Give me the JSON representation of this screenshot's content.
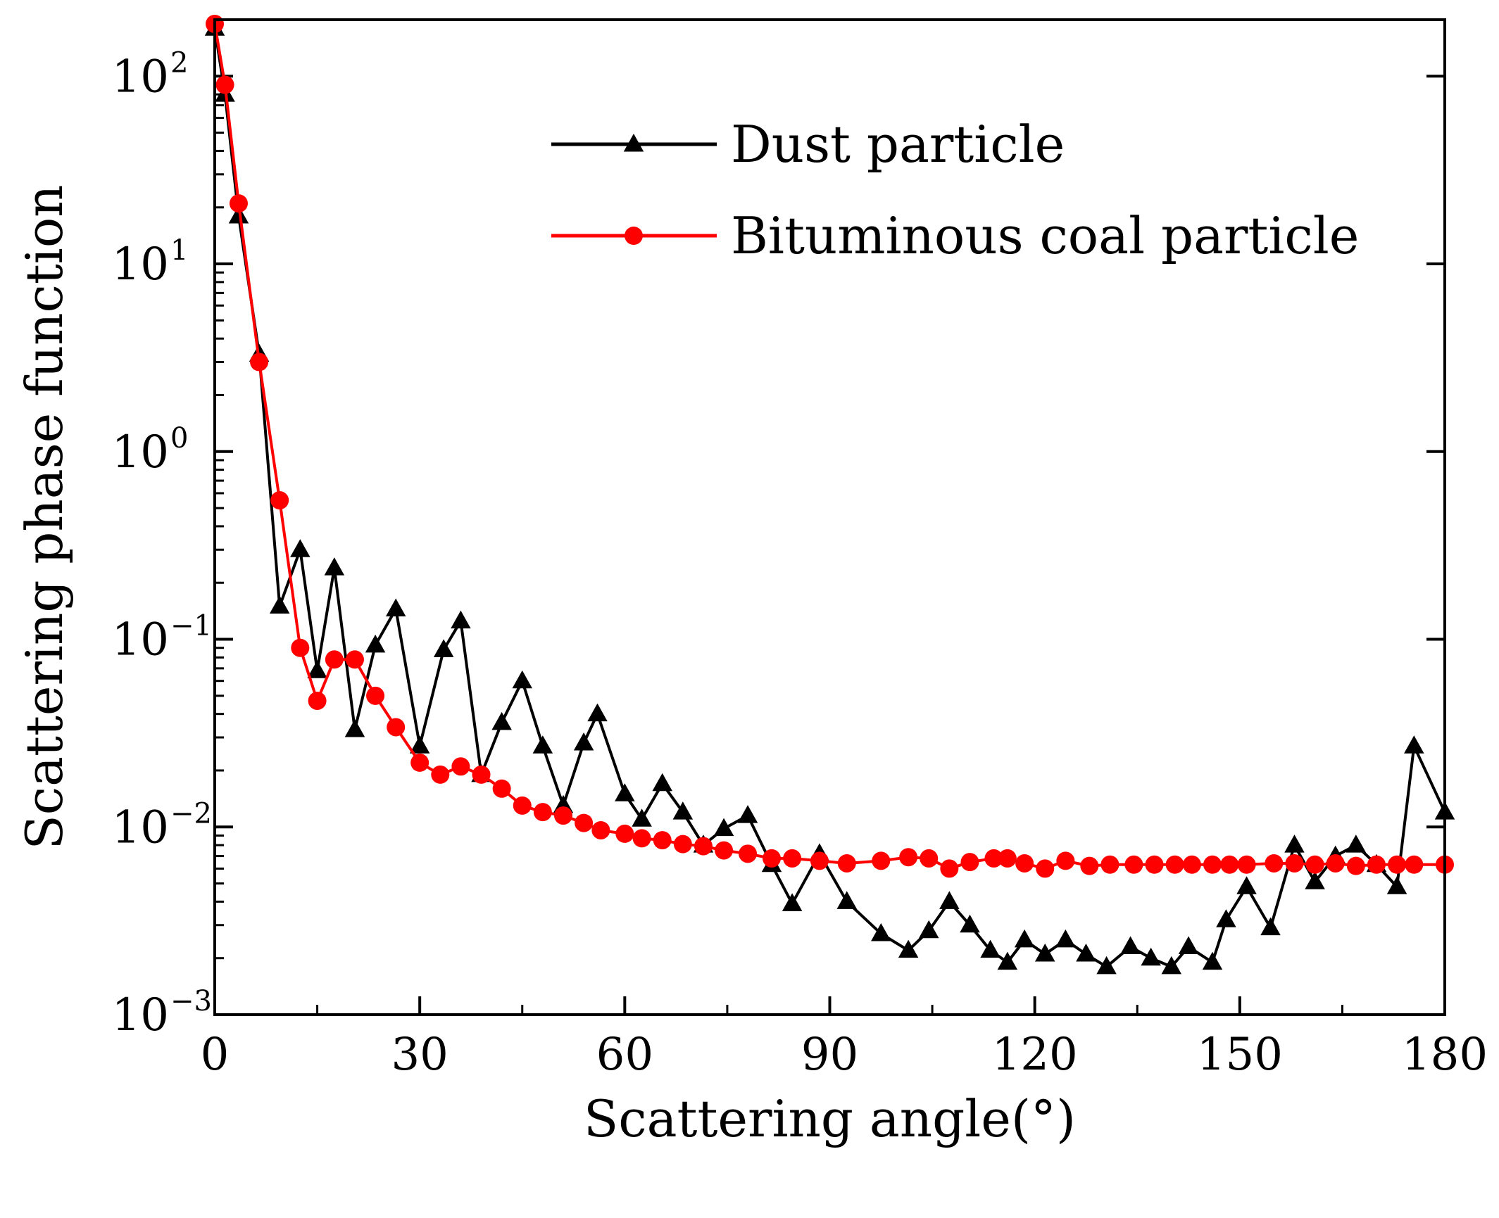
{
  "chart_data": {
    "type": "line",
    "xlabel": "Scattering angle(°)",
    "ylabel": "Scattering phase function",
    "xlim": [
      0,
      180
    ],
    "ylim": [
      0.001,
      200
    ],
    "yscale": "log",
    "xticks": [
      0,
      30,
      60,
      90,
      120,
      150,
      180
    ],
    "xtick_labels": [
      "0",
      "30",
      "60",
      "90",
      "120",
      "150",
      "180"
    ],
    "yticks": [
      {
        "value": 0.001,
        "base": "10",
        "exp": "−3"
      },
      {
        "value": 0.01,
        "base": "10",
        "exp": "−2"
      },
      {
        "value": 0.1,
        "base": "10",
        "exp": "−1"
      },
      {
        "value": 1,
        "base": "10",
        "exp": "0"
      },
      {
        "value": 10,
        "base": "10",
        "exp": "1"
      },
      {
        "value": 100,
        "base": "10",
        "exp": "2"
      }
    ],
    "legend_position": "top-right",
    "series": [
      {
        "name": "Dust particle",
        "color": "#000000",
        "marker": "triangle",
        "x": [
          0,
          1.5,
          3.5,
          6.5,
          9.5,
          12.5,
          15,
          17.5,
          20.5,
          23.5,
          26.5,
          30,
          33.5,
          36,
          39,
          42,
          45,
          48,
          51,
          54,
          56,
          60,
          62.5,
          65.5,
          68.5,
          71.5,
          74.5,
          78,
          81.5,
          84.5,
          88.5,
          92.5,
          97.5,
          101.5,
          104.5,
          107.5,
          110.5,
          113.5,
          116,
          118.5,
          121.5,
          124.5,
          127.5,
          130.5,
          134,
          137,
          140,
          142.5,
          146,
          148,
          151,
          154.5,
          158,
          161,
          164,
          167,
          170,
          173,
          175.5,
          180
        ],
        "values": [
          180,
          80,
          18,
          3.3,
          0.15,
          0.3,
          0.068,
          0.24,
          0.033,
          0.093,
          0.145,
          0.027,
          0.088,
          0.125,
          0.019,
          0.036,
          0.06,
          0.027,
          0.013,
          0.028,
          0.04,
          0.015,
          0.011,
          0.017,
          0.012,
          0.008,
          0.0098,
          0.0115,
          0.0063,
          0.0039,
          0.0072,
          0.004,
          0.0027,
          0.0022,
          0.0028,
          0.004,
          0.003,
          0.0022,
          0.0019,
          0.0025,
          0.0021,
          0.0025,
          0.0021,
          0.0018,
          0.0023,
          0.002,
          0.0018,
          0.0023,
          0.0019,
          0.0032,
          0.0048,
          0.0029,
          0.008,
          0.0051,
          0.007,
          0.008,
          0.0063,
          0.0048,
          0.027,
          0.012
        ]
      },
      {
        "name": "Bituminous coal particle",
        "color": "#ff0000",
        "marker": "circle",
        "x": [
          0,
          1.5,
          3.5,
          6.5,
          9.5,
          12.5,
          15,
          17.5,
          20.5,
          23.5,
          26.5,
          30,
          33,
          36,
          39,
          42,
          45,
          48,
          51,
          54,
          56.5,
          60,
          62.5,
          65.5,
          68.5,
          71.5,
          74.5,
          78,
          81.5,
          84.5,
          88.5,
          92.5,
          97.5,
          101.5,
          104.5,
          107.5,
          110.5,
          114,
          116,
          118.5,
          121.5,
          124.5,
          128,
          131,
          134.5,
          137.5,
          140.5,
          143,
          146,
          148.5,
          151,
          155,
          158,
          161,
          164,
          167,
          170,
          173,
          175.5,
          180
        ],
        "values": [
          190,
          90,
          21,
          3.0,
          0.55,
          0.09,
          0.047,
          0.078,
          0.078,
          0.05,
          0.034,
          0.022,
          0.019,
          0.021,
          0.019,
          0.016,
          0.013,
          0.012,
          0.0115,
          0.0105,
          0.0096,
          0.0092,
          0.0087,
          0.0085,
          0.0081,
          0.0079,
          0.0075,
          0.0072,
          0.0068,
          0.0068,
          0.0066,
          0.0064,
          0.0066,
          0.0069,
          0.0068,
          0.006,
          0.0065,
          0.0068,
          0.0068,
          0.0064,
          0.006,
          0.0066,
          0.0062,
          0.0063,
          0.0063,
          0.0063,
          0.0063,
          0.0063,
          0.0063,
          0.0063,
          0.0063,
          0.0064,
          0.0064,
          0.0063,
          0.0064,
          0.0062,
          0.0063,
          0.0063,
          0.0063,
          0.0063
        ]
      }
    ]
  }
}
